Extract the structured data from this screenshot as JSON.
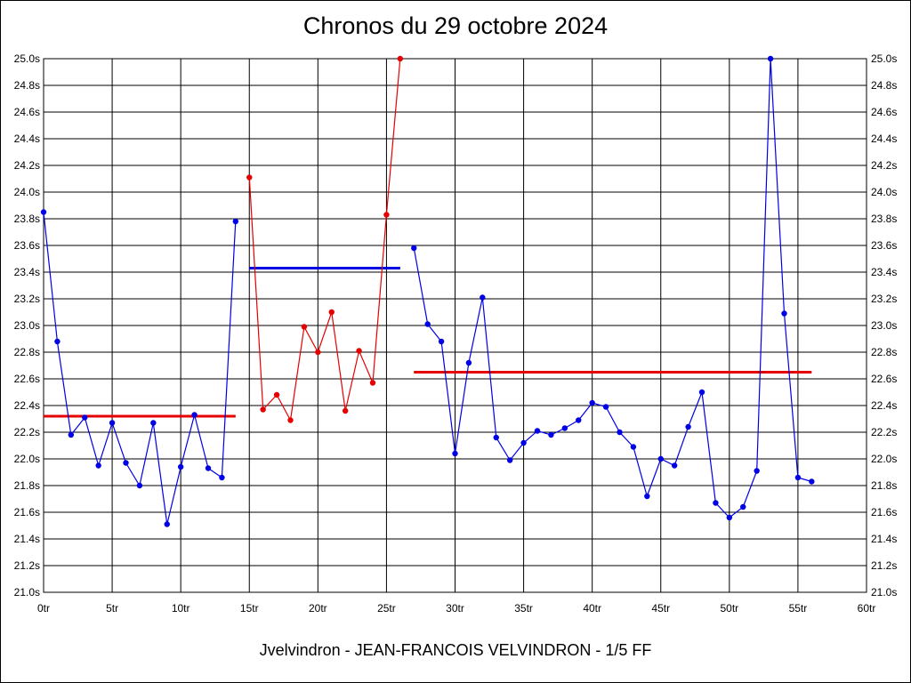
{
  "chart_data": {
    "type": "line",
    "title": "Chronos du 29 octobre 2024",
    "footer": "Jvelvindron - JEAN-FRANCOIS VELVINDRON - 1/5 FF",
    "xlim": [
      0,
      60
    ],
    "ylim": [
      21.0,
      25.0
    ],
    "x_ticks": [
      0,
      5,
      10,
      15,
      20,
      25,
      30,
      35,
      40,
      45,
      50,
      55,
      60
    ],
    "x_tick_labels": [
      "0tr",
      "5tr",
      "10tr",
      "15tr",
      "20tr",
      "25tr",
      "30tr",
      "35tr",
      "40tr",
      "45tr",
      "50tr",
      "55tr",
      "60tr"
    ],
    "y_ticks": [
      21.0,
      21.2,
      21.4,
      21.6,
      21.8,
      22.0,
      22.2,
      22.4,
      22.6,
      22.8,
      23.0,
      23.2,
      23.4,
      23.6,
      23.8,
      24.0,
      24.2,
      24.4,
      24.6,
      24.8,
      25.0
    ],
    "y_tick_labels": [
      "21.0s",
      "21.2s",
      "21.4s",
      "21.6s",
      "21.8s",
      "22.0s",
      "22.2s",
      "22.4s",
      "22.6s",
      "22.8s",
      "23.0s",
      "23.2s",
      "23.4s",
      "23.6s",
      "23.8s",
      "24.0s",
      "24.2s",
      "24.4s",
      "24.6s",
      "24.8s",
      "25.0s"
    ],
    "grid": true,
    "series": [
      {
        "color": "#0000e6",
        "points": [
          [
            0,
            23.85
          ],
          [
            1,
            22.88
          ],
          [
            2,
            22.18
          ],
          [
            3,
            22.31
          ],
          [
            4,
            21.95
          ],
          [
            5,
            22.27
          ],
          [
            6,
            21.97
          ],
          [
            7,
            21.8
          ],
          [
            8,
            22.27
          ],
          [
            9,
            21.51
          ],
          [
            10,
            21.94
          ],
          [
            11,
            22.33
          ],
          [
            12,
            21.93
          ],
          [
            13,
            21.86
          ],
          [
            14,
            23.78
          ]
        ]
      },
      {
        "color": "#e60000",
        "points": [
          [
            15,
            24.11
          ],
          [
            16,
            22.37
          ],
          [
            17,
            22.48
          ],
          [
            18,
            22.29
          ],
          [
            19,
            22.99
          ],
          [
            20,
            22.8
          ],
          [
            21,
            23.1
          ],
          [
            22,
            22.36
          ],
          [
            23,
            22.81
          ],
          [
            24,
            22.57
          ],
          [
            25,
            23.83
          ],
          [
            26,
            25.0
          ]
        ]
      },
      {
        "color": "#0000e6",
        "points": [
          [
            27,
            23.58
          ],
          [
            28,
            23.01
          ],
          [
            29,
            22.88
          ],
          [
            30,
            22.04
          ],
          [
            31,
            22.72
          ],
          [
            32,
            23.21
          ],
          [
            33,
            22.16
          ],
          [
            34,
            21.99
          ],
          [
            35,
            22.12
          ],
          [
            36,
            22.21
          ],
          [
            37,
            22.18
          ],
          [
            38,
            22.23
          ],
          [
            39,
            22.29
          ],
          [
            40,
            22.42
          ],
          [
            41,
            22.39
          ],
          [
            42,
            22.2
          ],
          [
            43,
            22.09
          ],
          [
            44,
            21.72
          ],
          [
            45,
            22.0
          ],
          [
            46,
            21.95
          ],
          [
            47,
            22.24
          ],
          [
            48,
            22.5
          ],
          [
            49,
            21.67
          ],
          [
            50,
            21.56
          ],
          [
            51,
            21.64
          ],
          [
            52,
            21.91
          ],
          [
            53,
            25.0
          ],
          [
            54,
            23.09
          ],
          [
            55,
            21.86
          ],
          [
            56,
            21.83
          ]
        ]
      }
    ],
    "average_lines": [
      {
        "x_start": 0,
        "x_end": 14,
        "value": 22.32,
        "color": "#e60000"
      },
      {
        "x_start": 15,
        "x_end": 26,
        "value": 23.43,
        "color": "#0000e6"
      },
      {
        "x_start": 27,
        "x_end": 56,
        "value": 22.65,
        "color": "#e60000"
      }
    ]
  }
}
